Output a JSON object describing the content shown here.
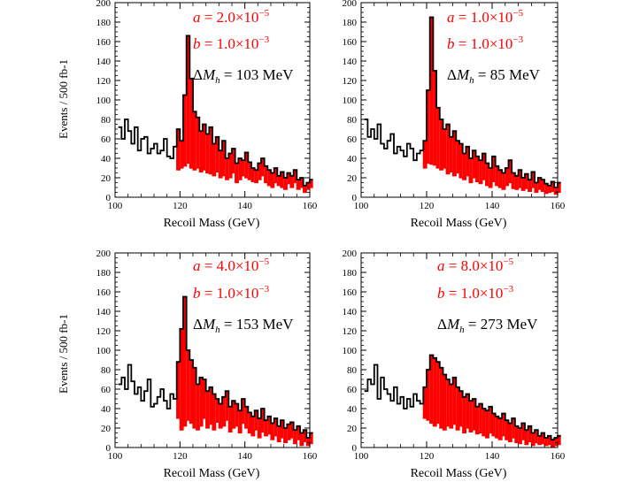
{
  "figure": {
    "colors": {
      "signal": "#ff0000",
      "outline": "#000000",
      "annotation_red": "#ff0000",
      "annotation_black": "#000000"
    }
  },
  "chart_data": [
    {
      "type": "histogram",
      "xlabel": "Recoil Mass (GeV)",
      "ylabel": "Events / 500 fb-1",
      "xlim": [
        100,
        160
      ],
      "ylim": [
        0,
        200
      ],
      "xticks": [
        "100",
        "120",
        "140",
        "160"
      ],
      "yticks": [
        "0",
        "20",
        "40",
        "60",
        "80",
        "100",
        "120",
        "140",
        "160",
        "180",
        "200"
      ],
      "annotations": {
        "a": "a = 2.0×10−5",
        "b": "b = 1.0×10−3",
        "dm": "ΔMh = 103 MeV"
      },
      "ann_parts": {
        "a_mant": "2.0",
        "a_exp": "−5",
        "b_mant": "1.0",
        "b_exp": "−3",
        "dm_val": "103"
      },
      "bin_edges_start": 101,
      "bin_width": 1,
      "total": [
        72,
        60,
        80,
        68,
        55,
        72,
        48,
        60,
        62,
        45,
        50,
        55,
        45,
        48,
        60,
        42,
        40,
        52,
        70,
        58,
        105,
        166,
        122,
        88,
        82,
        68,
        75,
        65,
        72,
        55,
        62,
        48,
        58,
        40,
        45,
        50,
        35,
        40,
        38,
        46,
        36,
        30,
        28,
        35,
        40,
        32,
        28,
        25,
        30,
        22,
        26,
        20,
        25,
        22,
        28,
        18,
        20,
        12,
        15,
        18
      ],
      "background": [
        72,
        60,
        80,
        68,
        55,
        72,
        48,
        60,
        62,
        45,
        50,
        55,
        45,
        48,
        60,
        42,
        40,
        52,
        28,
        30,
        32,
        35,
        30,
        28,
        30,
        26,
        28,
        25,
        24,
        22,
        26,
        20,
        22,
        18,
        20,
        25,
        15,
        18,
        22,
        20,
        18,
        16,
        15,
        18,
        22,
        15,
        12,
        10,
        15,
        12,
        10,
        8,
        14,
        10,
        15,
        8,
        10,
        5,
        8,
        10
      ]
    },
    {
      "type": "histogram",
      "xlabel": "Recoil Mass (GeV)",
      "ylabel": "",
      "xlim": [
        100,
        160
      ],
      "ylim": [
        0,
        200
      ],
      "xticks": [
        "100",
        "120",
        "140",
        "160"
      ],
      "yticks": [
        "0",
        "20",
        "40",
        "60",
        "80",
        "100",
        "120",
        "140",
        "160",
        "180",
        "200"
      ],
      "annotations": {
        "a": "a = 1.0×10−5",
        "b": "b = 1.0×10−3",
        "dm": "ΔMh = 85 MeV"
      },
      "ann_parts": {
        "a_mant": "1.0",
        "a_exp": "−5",
        "b_mant": "1.0",
        "b_exp": "−3",
        "dm_val": "85"
      },
      "bin_edges_start": 101,
      "bin_width": 1,
      "total": [
        80,
        62,
        70,
        60,
        75,
        55,
        50,
        58,
        65,
        45,
        52,
        48,
        42,
        55,
        50,
        38,
        45,
        48,
        58,
        110,
        185,
        130,
        92,
        80,
        70,
        75,
        62,
        68,
        58,
        55,
        45,
        52,
        40,
        48,
        42,
        38,
        45,
        35,
        30,
        42,
        32,
        28,
        25,
        30,
        38,
        25,
        22,
        28,
        20,
        24,
        18,
        26,
        15,
        20,
        18,
        14,
        12,
        16,
        10,
        15
      ],
      "background": [
        80,
        62,
        70,
        60,
        75,
        55,
        50,
        58,
        65,
        45,
        52,
        48,
        42,
        55,
        50,
        38,
        45,
        48,
        30,
        35,
        34,
        33,
        30,
        28,
        30,
        24,
        26,
        22,
        25,
        20,
        18,
        22,
        15,
        20,
        16,
        14,
        18,
        12,
        10,
        16,
        12,
        10,
        8,
        12,
        15,
        9,
        8,
        10,
        7,
        9,
        6,
        10,
        5,
        8,
        6,
        4,
        5,
        6,
        3,
        5
      ]
    },
    {
      "type": "histogram",
      "xlabel": "Recoil Mass (GeV)",
      "ylabel": "Events / 500 fb-1",
      "xlim": [
        100,
        160
      ],
      "ylim": [
        0,
        200
      ],
      "xticks": [
        "100",
        "120",
        "140",
        "160"
      ],
      "yticks": [
        "0",
        "20",
        "40",
        "60",
        "80",
        "100",
        "120",
        "140",
        "160",
        "180",
        "200"
      ],
      "annotations": {
        "a": "a = 4.0×10−5",
        "b": "b = 1.0×10−3",
        "dm": "ΔMh = 153 MeV"
      },
      "ann_parts": {
        "a_mant": "4.0",
        "a_exp": "−5",
        "b_mant": "1.0",
        "b_exp": "−3",
        "dm_val": "153"
      },
      "bin_edges_start": 101,
      "bin_width": 1,
      "total": [
        65,
        72,
        60,
        85,
        68,
        55,
        62,
        48,
        58,
        70,
        42,
        45,
        52,
        60,
        48,
        40,
        55,
        50,
        88,
        122,
        155,
        100,
        90,
        82,
        65,
        72,
        70,
        58,
        62,
        55,
        50,
        45,
        52,
        58,
        42,
        48,
        45,
        38,
        50,
        42,
        36,
        32,
        38,
        30,
        40,
        28,
        32,
        25,
        30,
        22,
        28,
        20,
        24,
        26,
        18,
        22,
        15,
        18,
        10,
        15
      ],
      "background": [
        65,
        72,
        60,
        85,
        68,
        55,
        62,
        48,
        58,
        70,
        42,
        45,
        52,
        60,
        48,
        40,
        55,
        50,
        30,
        18,
        22,
        28,
        25,
        20,
        18,
        22,
        30,
        20,
        24,
        18,
        26,
        20,
        22,
        28,
        16,
        20,
        22,
        15,
        25,
        20,
        15,
        12,
        18,
        10,
        16,
        12,
        14,
        8,
        12,
        6,
        10,
        5,
        8,
        10,
        4,
        8,
        2,
        6,
        2,
        4
      ]
    },
    {
      "type": "histogram",
      "xlabel": "Recoil Mass (GeV)",
      "ylabel": "",
      "xlim": [
        100,
        160
      ],
      "ylim": [
        0,
        200
      ],
      "xticks": [
        "100",
        "120",
        "140",
        "160"
      ],
      "yticks": [
        "0",
        "20",
        "40",
        "60",
        "80",
        "100",
        "120",
        "140",
        "160",
        "180",
        "200"
      ],
      "annotations": {
        "a": "a = 8.0×10−5",
        "b": "b = 1.0×10−3",
        "dm": "ΔMh = 273 MeV"
      },
      "ann_parts": {
        "a_mant": "8.0",
        "a_exp": "−5",
        "b_mant": "1.0",
        "b_exp": "−3",
        "dm_val": "273"
      },
      "bin_edges_start": 101,
      "bin_width": 1,
      "total": [
        58,
        70,
        65,
        85,
        50,
        72,
        60,
        55,
        48,
        62,
        45,
        52,
        40,
        50,
        42,
        55,
        48,
        45,
        62,
        80,
        95,
        92,
        88,
        82,
        75,
        70,
        65,
        72,
        62,
        58,
        52,
        55,
        48,
        50,
        42,
        45,
        40,
        38,
        42,
        35,
        32,
        30,
        35,
        28,
        25,
        30,
        22,
        20,
        25,
        18,
        22,
        15,
        18,
        12,
        15,
        10,
        12,
        8,
        10,
        12
      ],
      "background": [
        58,
        70,
        65,
        85,
        50,
        72,
        60,
        55,
        48,
        62,
        45,
        52,
        40,
        50,
        42,
        55,
        48,
        45,
        30,
        28,
        25,
        22,
        25,
        20,
        18,
        22,
        20,
        24,
        18,
        22,
        15,
        20,
        16,
        18,
        14,
        15,
        12,
        10,
        15,
        12,
        10,
        8,
        12,
        8,
        6,
        10,
        5,
        4,
        8,
        3,
        6,
        2,
        5,
        3,
        4,
        2,
        3,
        1,
        2,
        3
      ]
    }
  ]
}
